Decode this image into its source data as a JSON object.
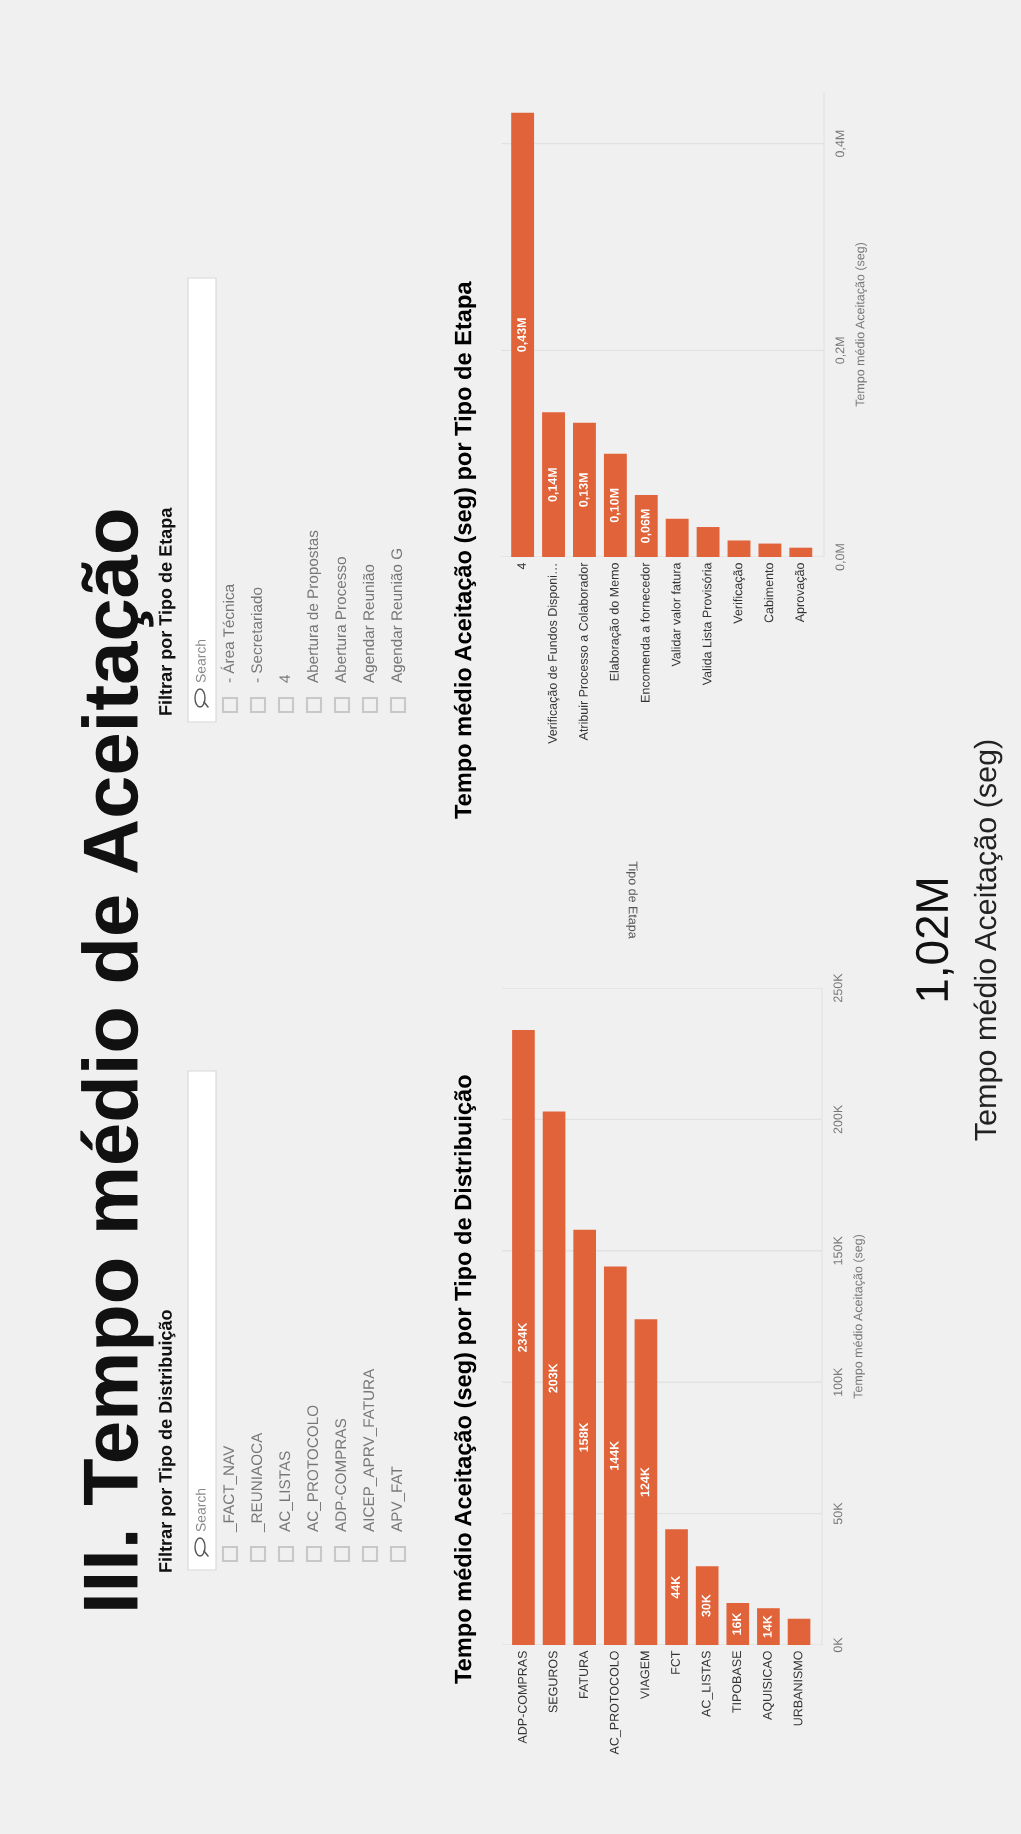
{
  "chart_data": [
    {
      "type": "other",
      "title": "III. Tempo médio de Aceitação"
    },
    {
      "type": "other",
      "title": "Filtrar por Tipo de Etapa",
      "annotations": [
        "Search",
        "- Área Técnica",
        "- Secretariado",
        "4",
        "Abertura de Propostas",
        "Abertura Processo",
        "Agendar Reunião",
        "Agendar Reunião G"
      ]
    },
    {
      "type": "other",
      "title": "Filtrar por Tipo de Distribuição",
      "annotations": [
        "Search",
        "_FACT_NAV",
        "_REUNIAOCA",
        "AC_LISTAS",
        "AC_PROTOCOLO",
        "ADP-COMPRAS",
        "AICEP_APRV_FATURA",
        "APV_FAT"
      ]
    },
    {
      "type": "bar",
      "title": "Tempo médio Aceitação (seg) por Tipo de Etapa",
      "annotations": [
        "Tipo de Etapa"
      ],
      "ylabel": "Tempo médio Aceitação (seg)",
      "categories": [
        "4",
        "Verificação de Fundos Disponi…",
        "Atribuir Processo a Colaborador",
        "Elaboração do Memo",
        "Encomenda a fornecedor",
        "Validar valor fatura",
        "Valida Lista Provisória",
        "Verificação",
        "Cabimento",
        "Aprovação"
      ],
      "values": [
        430000,
        140000,
        130000,
        100000,
        60000,
        37000,
        29000,
        16000,
        13000,
        9000
      ],
      "value_labels": [
        "0,43M",
        "0,14M",
        "0,13M",
        "0,10M",
        "0,06M",
        null,
        null,
        null,
        null,
        null
      ],
      "color": "#e0633a",
      "ylim": [
        0,
        450000
      ],
      "yticks": [
        {
          "value": 0,
          "label": "0,0M"
        },
        {
          "value": 200000,
          "label": "0,2M"
        },
        {
          "value": 400000,
          "label": "0,4M"
        }
      ],
      "grid": "y"
    },
    {
      "type": "bar",
      "title": "Tempo médio Aceitação (seg) por Tipo de Distribuição",
      "ylabel": "Tempo médio Aceitação (seg)",
      "categories": [
        "ADP-COMPRAS",
        "SEGUROS",
        "FATURA",
        "AC_PROTOCOLO",
        "VIAGEM",
        "FCT",
        "AC_LISTAS",
        "TIPOBASE",
        "AQUISICAO",
        "URBANISMO"
      ],
      "values": [
        234000,
        203000,
        158000,
        144000,
        124000,
        44000,
        30000,
        16000,
        14000,
        10000
      ],
      "value_labels": [
        "234K",
        "203K",
        "158K",
        "144K",
        "124K",
        "44K",
        "30K",
        "16K",
        "14K",
        null
      ],
      "color": "#e0633a",
      "ylim": [
        0,
        250000
      ],
      "yticks": [
        {
          "value": 0,
          "label": "0K"
        },
        {
          "value": 50000,
          "label": "50K"
        },
        {
          "value": 100000,
          "label": "100K"
        },
        {
          "value": 150000,
          "label": "150K"
        },
        {
          "value": 200000,
          "label": "200K"
        },
        {
          "value": 250000,
          "label": "250K"
        }
      ],
      "grid": "y"
    },
    {
      "type": "other",
      "title": "Tempo médio Aceitação (seg)",
      "annotations": [
        "1,02M"
      ]
    }
  ]
}
